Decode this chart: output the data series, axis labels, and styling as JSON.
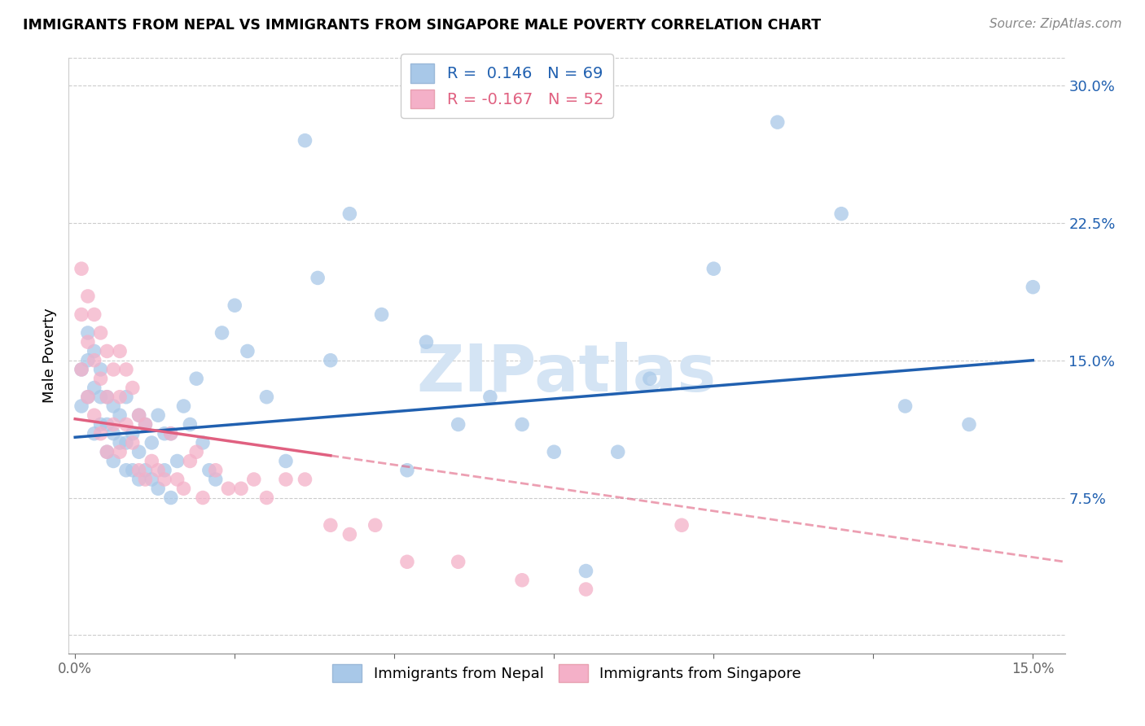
{
  "title": "IMMIGRANTS FROM NEPAL VS IMMIGRANTS FROM SINGAPORE MALE POVERTY CORRELATION CHART",
  "source": "Source: ZipAtlas.com",
  "ylabel": "Male Poverty",
  "y_ticks": [
    0.0,
    0.075,
    0.15,
    0.225,
    0.3
  ],
  "y_tick_labels": [
    "",
    "7.5%",
    "15.0%",
    "22.5%",
    "30.0%"
  ],
  "x_ticks": [
    0.0,
    0.025,
    0.05,
    0.075,
    0.1,
    0.125,
    0.15
  ],
  "x_tick_labels": [
    "0.0%",
    "",
    "",
    "",
    "",
    "",
    "15.0%"
  ],
  "xlim": [
    -0.001,
    0.155
  ],
  "ylim": [
    -0.01,
    0.315
  ],
  "nepal_R": 0.146,
  "nepal_N": 69,
  "singapore_R": -0.167,
  "singapore_N": 52,
  "nepal_color": "#a8c8e8",
  "singapore_color": "#f4b0c8",
  "nepal_line_color": "#2060b0",
  "singapore_line_color": "#e06080",
  "watermark": "ZIPatlas",
  "watermark_color": "#d4e4f4",
  "nepal_line_x0": 0.0,
  "nepal_line_y0": 0.108,
  "nepal_line_x1": 0.15,
  "nepal_line_y1": 0.15,
  "singapore_line_solid_x0": 0.0,
  "singapore_line_solid_y0": 0.118,
  "singapore_line_solid_x1": 0.04,
  "singapore_line_solid_y1": 0.098,
  "singapore_line_dash_x0": 0.04,
  "singapore_line_dash_y0": 0.098,
  "singapore_line_dash_x1": 0.155,
  "singapore_line_dash_y1": 0.04,
  "nepal_scatter_x": [
    0.001,
    0.001,
    0.002,
    0.002,
    0.002,
    0.003,
    0.003,
    0.003,
    0.004,
    0.004,
    0.004,
    0.005,
    0.005,
    0.005,
    0.006,
    0.006,
    0.006,
    0.007,
    0.007,
    0.008,
    0.008,
    0.008,
    0.009,
    0.009,
    0.01,
    0.01,
    0.01,
    0.011,
    0.011,
    0.012,
    0.012,
    0.013,
    0.013,
    0.014,
    0.014,
    0.015,
    0.015,
    0.016,
    0.017,
    0.018,
    0.019,
    0.02,
    0.021,
    0.022,
    0.023,
    0.025,
    0.027,
    0.03,
    0.033,
    0.036,
    0.038,
    0.04,
    0.043,
    0.048,
    0.052,
    0.055,
    0.06,
    0.065,
    0.07,
    0.075,
    0.08,
    0.085,
    0.09,
    0.1,
    0.11,
    0.12,
    0.13,
    0.14,
    0.15
  ],
  "nepal_scatter_y": [
    0.125,
    0.145,
    0.13,
    0.15,
    0.165,
    0.11,
    0.135,
    0.155,
    0.115,
    0.13,
    0.145,
    0.1,
    0.115,
    0.13,
    0.095,
    0.11,
    0.125,
    0.105,
    0.12,
    0.09,
    0.105,
    0.13,
    0.09,
    0.11,
    0.085,
    0.1,
    0.12,
    0.09,
    0.115,
    0.085,
    0.105,
    0.08,
    0.12,
    0.09,
    0.11,
    0.075,
    0.11,
    0.095,
    0.125,
    0.115,
    0.14,
    0.105,
    0.09,
    0.085,
    0.165,
    0.18,
    0.155,
    0.13,
    0.095,
    0.27,
    0.195,
    0.15,
    0.23,
    0.175,
    0.09,
    0.16,
    0.115,
    0.13,
    0.115,
    0.1,
    0.035,
    0.1,
    0.14,
    0.2,
    0.28,
    0.23,
    0.125,
    0.115,
    0.19
  ],
  "singapore_scatter_x": [
    0.001,
    0.001,
    0.001,
    0.002,
    0.002,
    0.002,
    0.003,
    0.003,
    0.003,
    0.004,
    0.004,
    0.004,
    0.005,
    0.005,
    0.005,
    0.006,
    0.006,
    0.007,
    0.007,
    0.007,
    0.008,
    0.008,
    0.009,
    0.009,
    0.01,
    0.01,
    0.011,
    0.011,
    0.012,
    0.013,
    0.014,
    0.015,
    0.016,
    0.017,
    0.018,
    0.019,
    0.02,
    0.022,
    0.024,
    0.026,
    0.028,
    0.03,
    0.033,
    0.036,
    0.04,
    0.043,
    0.047,
    0.052,
    0.06,
    0.07,
    0.08,
    0.095
  ],
  "singapore_scatter_y": [
    0.2,
    0.175,
    0.145,
    0.185,
    0.16,
    0.13,
    0.175,
    0.15,
    0.12,
    0.165,
    0.14,
    0.11,
    0.155,
    0.13,
    0.1,
    0.145,
    0.115,
    0.155,
    0.13,
    0.1,
    0.145,
    0.115,
    0.135,
    0.105,
    0.12,
    0.09,
    0.115,
    0.085,
    0.095,
    0.09,
    0.085,
    0.11,
    0.085,
    0.08,
    0.095,
    0.1,
    0.075,
    0.09,
    0.08,
    0.08,
    0.085,
    0.075,
    0.085,
    0.085,
    0.06,
    0.055,
    0.06,
    0.04,
    0.04,
    0.03,
    0.025,
    0.06
  ]
}
